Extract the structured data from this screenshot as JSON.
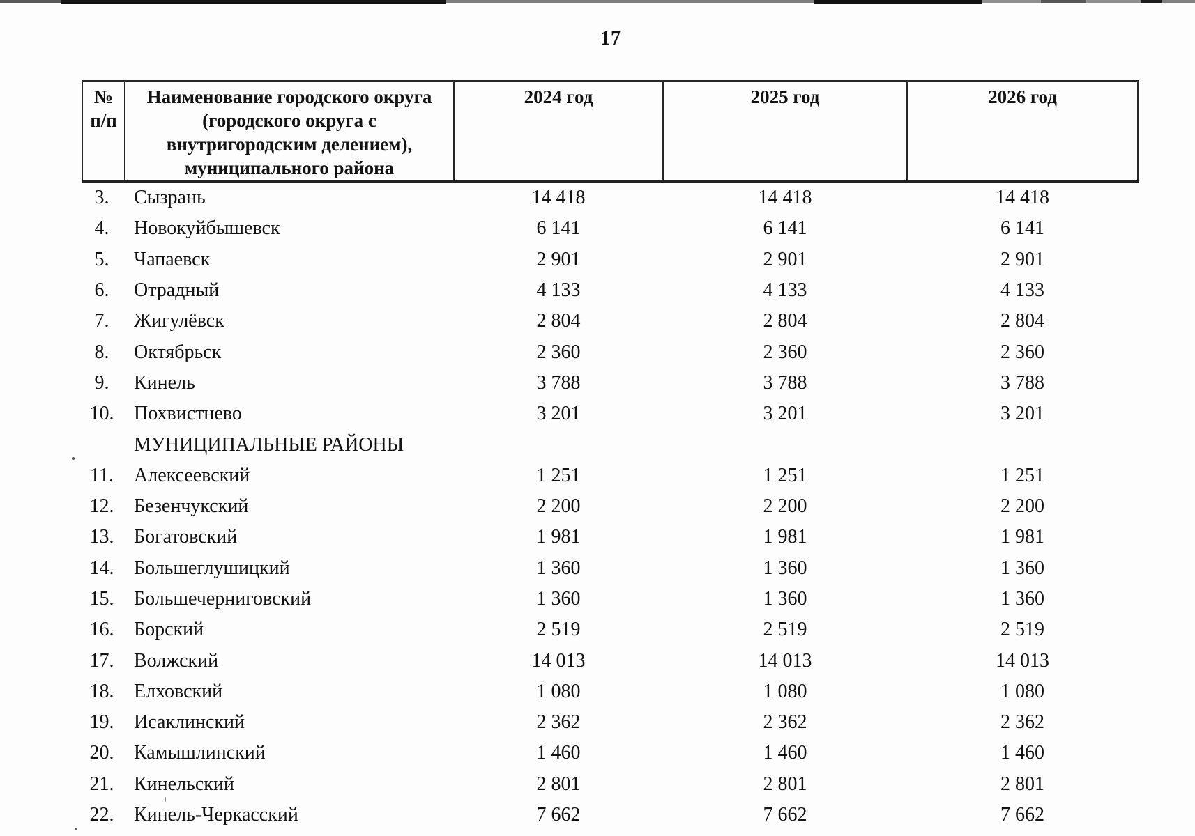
{
  "page_number": "17",
  "table": {
    "header": {
      "num_lines": [
        "№",
        "п/п"
      ],
      "name_lines": [
        "Наименование городского округа",
        "(городского округа с",
        "внутригородским делением),",
        "муниципального района"
      ],
      "years": [
        "2024 год",
        "2025 год",
        "2026 год"
      ]
    },
    "rows": [
      {
        "num": "3.",
        "name": "Сызрань",
        "values": [
          "14 418",
          "14 418",
          "14 418"
        ]
      },
      {
        "num": "4.",
        "name": "Новокуйбышевск",
        "values": [
          "6 141",
          "6 141",
          "6 141"
        ]
      },
      {
        "num": "5.",
        "name": "Чапаевск",
        "values": [
          "2 901",
          "2 901",
          "2 901"
        ]
      },
      {
        "num": "6.",
        "name": "Отрадный",
        "values": [
          "4 133",
          "4 133",
          "4 133"
        ]
      },
      {
        "num": "7.",
        "name": "Жигулёвск",
        "values": [
          "2 804",
          "2 804",
          "2 804"
        ]
      },
      {
        "num": "8.",
        "name": "Октябрьск",
        "values": [
          "2 360",
          "2 360",
          "2 360"
        ]
      },
      {
        "num": "9.",
        "name": "Кинель",
        "values": [
          "3 788",
          "3 788",
          "3 788"
        ]
      },
      {
        "num": "10.",
        "name": "Похвистнево",
        "values": [
          "3 201",
          "3 201",
          "3 201"
        ]
      },
      {
        "num": "",
        "name": "МУНИЦИПАЛЬНЫЕ РАЙОНЫ",
        "values": [
          "",
          "",
          ""
        ],
        "section": true
      },
      {
        "num": "11.",
        "name": "Алексеевский",
        "values": [
          "1 251",
          "1 251",
          "1 251"
        ]
      },
      {
        "num": "12.",
        "name": "Безенчукский",
        "values": [
          "2 200",
          "2 200",
          "2 200"
        ]
      },
      {
        "num": "13.",
        "name": "Богатовский",
        "values": [
          "1 981",
          "1 981",
          "1 981"
        ]
      },
      {
        "num": "14.",
        "name": "Большеглушицкий",
        "values": [
          "1 360",
          "1 360",
          "1 360"
        ]
      },
      {
        "num": "15.",
        "name": "Большечерниговский",
        "values": [
          "1 360",
          "1 360",
          "1 360"
        ]
      },
      {
        "num": "16.",
        "name": "Борский",
        "values": [
          "2 519",
          "2 519",
          "2 519"
        ]
      },
      {
        "num": "17.",
        "name": "Волжский",
        "values": [
          "14 013",
          "14 013",
          "14 013"
        ]
      },
      {
        "num": "18.",
        "name": "Елховский",
        "values": [
          "1 080",
          "1 080",
          "1 080"
        ]
      },
      {
        "num": "19.",
        "name": "Исаклинский",
        "values": [
          "2 362",
          "2 362",
          "2 362"
        ]
      },
      {
        "num": "20.",
        "name": "Камышлинский",
        "values": [
          "1 460",
          "1 460",
          "1 460"
        ]
      },
      {
        "num": "21.",
        "name": "Кинельский",
        "values": [
          "2 801",
          "2 801",
          "2 801"
        ]
      },
      {
        "num": "22.",
        "name": "Кинель-Черкасский",
        "values": [
          "7 662",
          "7 662",
          "7 662"
        ]
      }
    ]
  }
}
